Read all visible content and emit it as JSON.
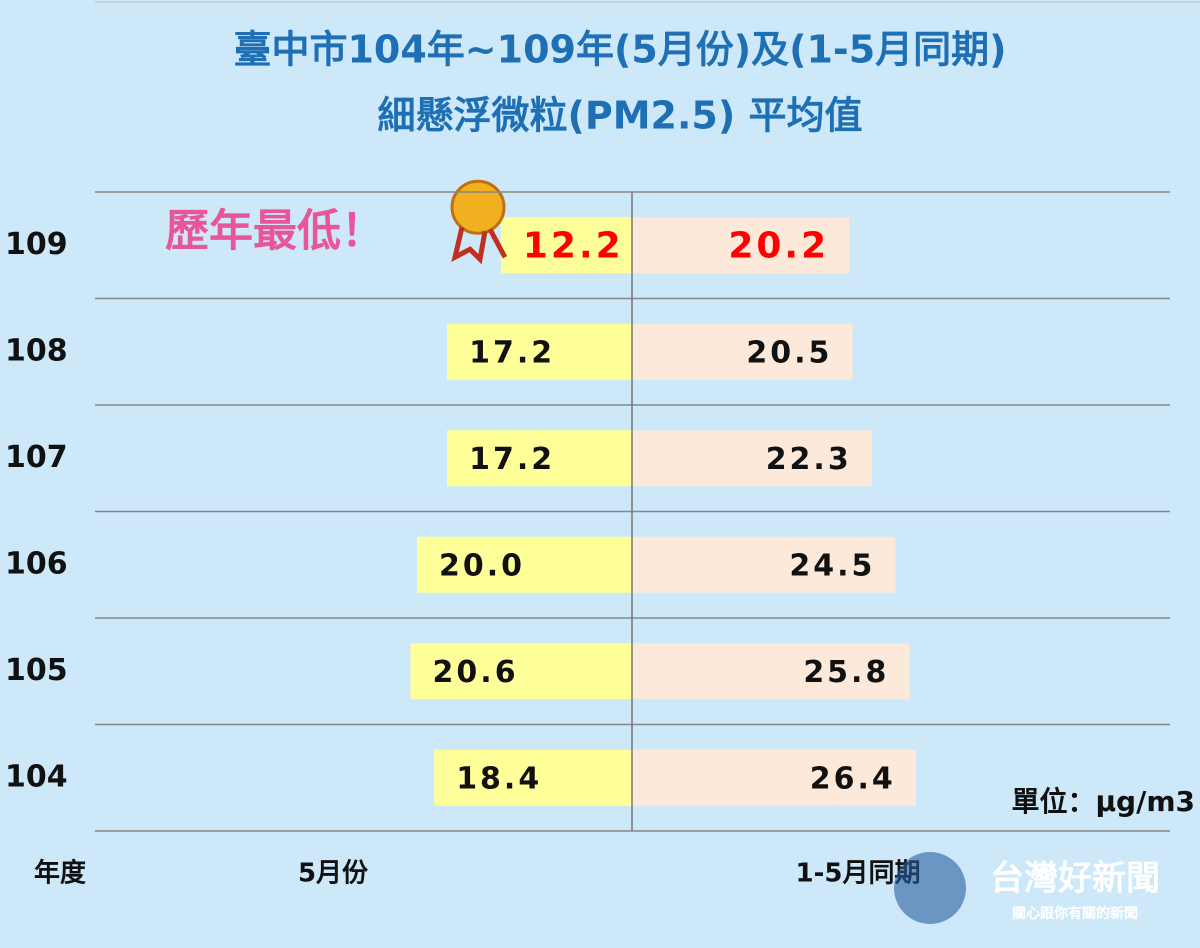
{
  "chart_data": {
    "type": "butterfly",
    "title": "臺中市104年~109年(5月份)及(1-5月同期)",
    "subtitle": "細懸浮微粒(PM2.5) 平均值",
    "annotation": "歷年最低！",
    "unit": "單位：μg/m3",
    "category_label": "年度",
    "categories": [
      "109",
      "108",
      "107",
      "106",
      "105",
      "104"
    ],
    "highlight": "109",
    "highlight_color": "#ff0000",
    "series": [
      {
        "name": "5月份",
        "color": "#ffff99",
        "values": [
          12.2,
          17.2,
          17.2,
          20.0,
          20.6,
          18.4
        ],
        "value_labels": [
          "12.2",
          "17.2",
          "17.2",
          "20.0",
          "20.6",
          "18.4"
        ]
      },
      {
        "name": "1-5月同期",
        "color": "#fde9d9",
        "values": [
          20.2,
          20.5,
          22.3,
          24.5,
          25.8,
          26.4
        ],
        "value_labels": [
          "20.2",
          "20.5",
          "22.3",
          "24.5",
          "25.8",
          "26.4"
        ]
      }
    ],
    "watermark": "台灣好新聞",
    "watermark_sub": "關心跟你有關的新聞"
  }
}
